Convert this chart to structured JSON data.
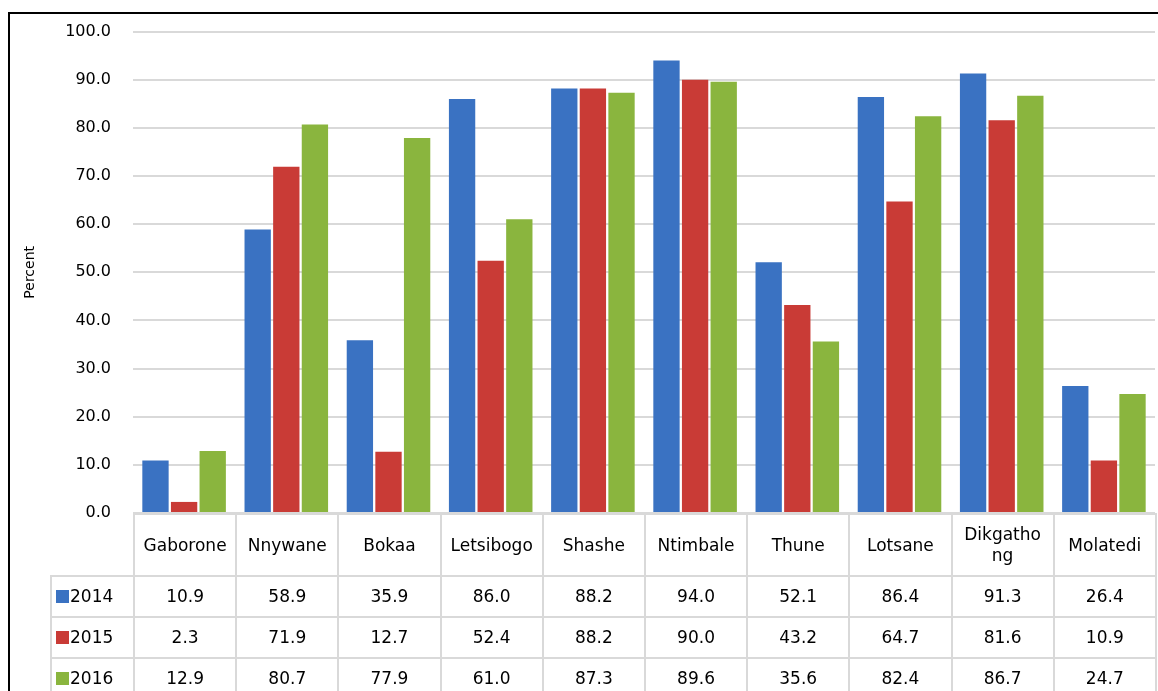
{
  "chart_data": {
    "type": "bar",
    "ylabel": "Percent",
    "categories": [
      "Gaborone",
      "Nnywane",
      "Bokaa",
      "Letsibogo",
      "Shashe",
      "Ntimbale",
      "Thune",
      "Lotsane",
      "Dikgathong",
      "Molatedi"
    ],
    "series": [
      {
        "name": "2014",
        "color": "#3a72c2",
        "values": [
          10.9,
          58.9,
          35.9,
          86.0,
          88.2,
          94.0,
          52.1,
          86.4,
          91.3,
          26.4
        ],
        "value_labels": [
          "10.9",
          "58.9",
          "35.9",
          "86.0",
          "88.2",
          "94.0",
          "52.1",
          "86.4",
          "91.3",
          "26.4"
        ]
      },
      {
        "name": "2015",
        "color": "#c93b36",
        "values": [
          2.3,
          71.9,
          12.7,
          52.4,
          88.2,
          90.0,
          43.2,
          64.7,
          81.6,
          10.9
        ],
        "value_labels": [
          "2.3",
          "71.9",
          "12.7",
          "52.4",
          "88.2",
          "90.0",
          "43.2",
          "64.7",
          "81.6",
          "10.9"
        ]
      },
      {
        "name": "2016",
        "color": "#8ab53e",
        "values": [
          12.9,
          80.7,
          77.9,
          61.0,
          87.3,
          89.6,
          35.6,
          82.4,
          86.7,
          24.7
        ],
        "value_labels": [
          "12.9",
          "80.7",
          "77.9",
          "61.0",
          "87.3",
          "89.6",
          "35.6",
          "82.4",
          "86.7",
          "24.7"
        ]
      }
    ],
    "ylim": [
      0,
      100
    ],
    "yticks": [
      {
        "value": 0,
        "label": "0.0"
      },
      {
        "value": 10,
        "label": "10.0"
      },
      {
        "value": 20,
        "label": "20.0"
      },
      {
        "value": 30,
        "label": "30.0"
      },
      {
        "value": 40,
        "label": "40.0"
      },
      {
        "value": 50,
        "label": "50.0"
      },
      {
        "value": 60,
        "label": "60.0"
      },
      {
        "value": 70,
        "label": "70.0"
      },
      {
        "value": 80,
        "label": "80.0"
      },
      {
        "value": 90,
        "label": "90.0"
      },
      {
        "value": 100,
        "label": "100.0"
      }
    ],
    "grid": "y",
    "legend": "bottom"
  }
}
